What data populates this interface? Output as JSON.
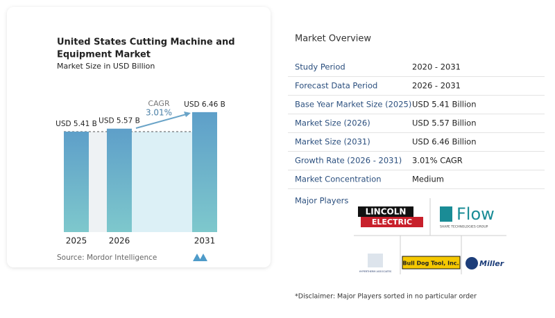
{
  "chart_data": {
    "type": "bar",
    "title": "United States Cutting Machine and Equipment Market",
    "subtitle": "Market Size in USD Billion",
    "categories": [
      "2025",
      "2026",
      "2031"
    ],
    "values": [
      5.41,
      5.57,
      6.46
    ],
    "value_labels": [
      "USD 5.41 B",
      "USD 5.57 B",
      "USD 6.46 B"
    ],
    "color": "#5e9fc9",
    "annotations": {
      "cagr_label": "CAGR",
      "cagr_value": "3.01%"
    },
    "source": "Source: Mordor Intelligence"
  },
  "overview": {
    "title": "Market Overview",
    "rows": [
      [
        "Study Period",
        "2020 - 2031"
      ],
      [
        "Forecast Data Period",
        "2026 - 2031"
      ],
      [
        "Base Year Market Size (2025)",
        "USD 5.41 Billion"
      ],
      [
        "Market Size (2026)",
        "USD 5.57 Billion"
      ],
      [
        "Market Size (2031)",
        "USD 6.46 Billion"
      ],
      [
        "Growth Rate (2026 - 2031)",
        "3.01% CAGR"
      ],
      [
        "Market Concentration",
        "Medium"
      ]
    ],
    "players_label": "Major Players",
    "players": [
      "LINCOLN",
      "ELECTRIC",
      "Flow",
      "SHAPE TECHNOLOGIES GROUP",
      "HYPERTHERM ASSOCIATES",
      "Bull Dog Tool, Inc.",
      "Miller"
    ],
    "disclaimer": "*Disclaimer: Major Players sorted in no particular order"
  }
}
